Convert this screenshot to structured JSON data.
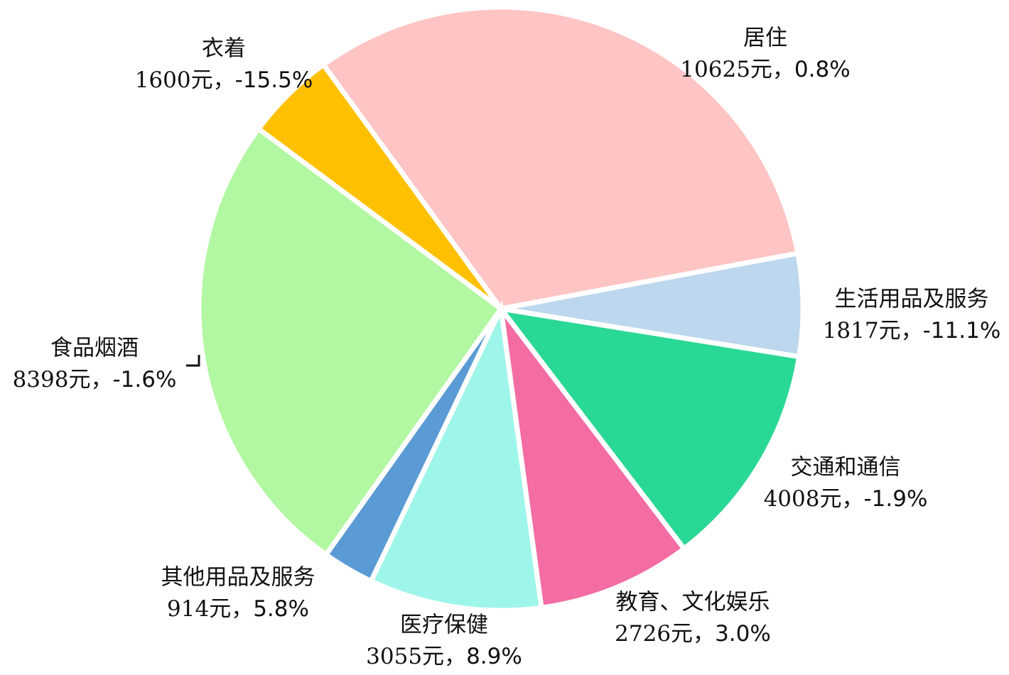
{
  "chart_data": {
    "type": "pie",
    "categories": [
      "居住",
      "生活用品及服务",
      "交通和通信",
      "教育、文化娱乐",
      "医疗保健",
      "其他用品及服务",
      "食品烟酒",
      "衣着"
    ],
    "values": [
      10625,
      1817,
      4008,
      2726,
      3055,
      914,
      8398,
      1600
    ],
    "value_labels": [
      "10625元，",
      "1817元，",
      "4008元，",
      "2726元，",
      "3055元，",
      "914元，",
      "8398元，",
      "1600元，"
    ],
    "changes": [
      0.8,
      -11.1,
      -1.9,
      3.0,
      8.9,
      5.8,
      -1.6,
      -15.5
    ],
    "change_labels": [
      "0.8%",
      "-11.1%",
      "-1.9%",
      "3.0%",
      "8.9%",
      "5.8%",
      "-1.6%",
      "-15.5%"
    ],
    "colors": [
      "#ffc4c4",
      "#bdd7ee",
      "#2ad895",
      "#f46ca4",
      "#9ef6ea",
      "#5b9bd5",
      "#b2f7a2",
      "#ffc000"
    ]
  }
}
